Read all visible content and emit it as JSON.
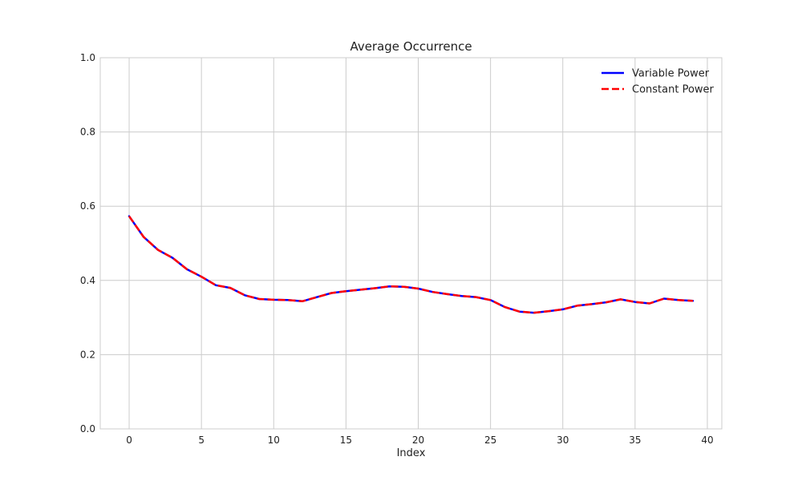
{
  "chart_data": {
    "type": "line",
    "title": "Average Occurrence",
    "xlabel": "Index",
    "ylabel": "",
    "xlim": [
      -2,
      41
    ],
    "ylim": [
      0.0,
      1.0
    ],
    "xticks": [
      0,
      5,
      10,
      15,
      20,
      25,
      30,
      35,
      40
    ],
    "yticks": [
      0.0,
      0.2,
      0.4,
      0.6,
      0.8,
      1.0
    ],
    "xtick_labels": [
      "0",
      "5",
      "10",
      "15",
      "20",
      "25",
      "30",
      "35",
      "40"
    ],
    "ytick_labels": [
      "0.0",
      "0.2",
      "0.4",
      "0.6",
      "0.8",
      "1.0"
    ],
    "grid": true,
    "legend_position": "top-right",
    "x": [
      0,
      1,
      2,
      3,
      4,
      5,
      6,
      7,
      8,
      9,
      10,
      11,
      12,
      13,
      14,
      15,
      16,
      17,
      18,
      19,
      20,
      21,
      22,
      23,
      24,
      25,
      26,
      27,
      28,
      29,
      30,
      31,
      32,
      33,
      34,
      35,
      36,
      37,
      38,
      39
    ],
    "series": [
      {
        "name": "Variable Power",
        "color": "#0000ff",
        "style": "solid",
        "values": [
          0.573,
          0.517,
          0.482,
          0.461,
          0.43,
          0.41,
          0.387,
          0.38,
          0.36,
          0.35,
          0.348,
          0.347,
          0.344,
          0.355,
          0.366,
          0.371,
          0.375,
          0.379,
          0.384,
          0.383,
          0.378,
          0.369,
          0.363,
          0.358,
          0.355,
          0.347,
          0.328,
          0.316,
          0.313,
          0.317,
          0.322,
          0.332,
          0.336,
          0.341,
          0.349,
          0.342,
          0.338,
          0.351,
          0.347,
          0.345
        ]
      },
      {
        "name": "Constant Power",
        "color": "#ff0000",
        "style": "dashed",
        "values": [
          0.573,
          0.517,
          0.482,
          0.461,
          0.43,
          0.41,
          0.387,
          0.38,
          0.36,
          0.35,
          0.348,
          0.347,
          0.344,
          0.355,
          0.366,
          0.371,
          0.375,
          0.379,
          0.384,
          0.383,
          0.378,
          0.369,
          0.363,
          0.358,
          0.355,
          0.347,
          0.328,
          0.316,
          0.313,
          0.317,
          0.322,
          0.332,
          0.336,
          0.341,
          0.349,
          0.342,
          0.338,
          0.351,
          0.347,
          0.345
        ]
      }
    ]
  }
}
